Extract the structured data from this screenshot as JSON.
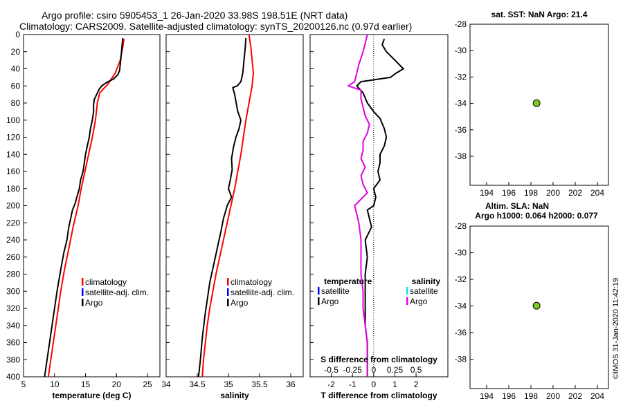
{
  "header": {
    "title_line1": "Argo profile: csiro 5905453_1 26-Jan-2020 33.98S 198.51E (NRT data)",
    "title_line2": "Climatology: CARS2009. Satellite-adjusted climatology: synTS_20200126.nc (0.97d earlier)"
  },
  "footer": {
    "stamp": "©IMOS 31-Jan-2020 11:42:19"
  },
  "colors": {
    "climatology": "#ff0000",
    "satellite": "#0000ff",
    "argo": "#000000",
    "sal_satellite": "#00e5ff",
    "sal_argo": "#e000e0",
    "dot": "#7ec820"
  },
  "chart_data": [
    {
      "id": "temperature",
      "type": "line",
      "xlabel": "temperature (deg C)",
      "xlim": [
        5,
        27
      ],
      "ylim": [
        400,
        0
      ],
      "xticks": [
        5,
        10,
        15,
        20,
        25
      ],
      "yticks": [
        0,
        20,
        40,
        60,
        80,
        100,
        120,
        140,
        160,
        180,
        200,
        220,
        240,
        260,
        280,
        300,
        320,
        340,
        360,
        380,
        400
      ],
      "legend": [
        "climatology",
        "satellite-adj. clim.",
        "Argo"
      ],
      "series": [
        {
          "name": "climatology",
          "color": "#ff0000",
          "points": [
            [
              21.2,
              5
            ],
            [
              21.0,
              15
            ],
            [
              20.6,
              30
            ],
            [
              19.8,
              45
            ],
            [
              18.6,
              58
            ],
            [
              17.3,
              68
            ],
            [
              16.9,
              80
            ],
            [
              16.6,
              100
            ],
            [
              16.1,
              120
            ],
            [
              15.5,
              140
            ],
            [
              14.9,
              160
            ],
            [
              14.3,
              180
            ],
            [
              13.8,
              200
            ],
            [
              13.0,
              225
            ],
            [
              12.3,
              250
            ],
            [
              11.6,
              275
            ],
            [
              11.0,
              300
            ],
            [
              10.4,
              330
            ],
            [
              9.8,
              360
            ],
            [
              9.3,
              385
            ],
            [
              9.0,
              400
            ]
          ]
        },
        {
          "name": "Argo",
          "color": "#000000",
          "points": [
            [
              21.0,
              4
            ],
            [
              20.9,
              12
            ],
            [
              20.8,
              20
            ],
            [
              20.7,
              28
            ],
            [
              20.6,
              35
            ],
            [
              20.5,
              42
            ],
            [
              20.2,
              47
            ],
            [
              19.5,
              52
            ],
            [
              18.4,
              56
            ],
            [
              17.6,
              60
            ],
            [
              17.2,
              64
            ],
            [
              16.8,
              70
            ],
            [
              16.4,
              76
            ],
            [
              16.3,
              82
            ],
            [
              16.3,
              90
            ],
            [
              16.1,
              100
            ],
            [
              15.8,
              110
            ],
            [
              15.6,
              120
            ],
            [
              15.3,
              130
            ],
            [
              15.0,
              140
            ],
            [
              14.8,
              150
            ],
            [
              14.6,
              160
            ],
            [
              14.2,
              170
            ],
            [
              14.0,
              180
            ],
            [
              13.6,
              190
            ],
            [
              13.3,
              198
            ],
            [
              12.9,
              205
            ],
            [
              12.6,
              215
            ],
            [
              12.3,
              225
            ],
            [
              12.0,
              240
            ],
            [
              11.5,
              255
            ],
            [
              11.0,
              275
            ],
            [
              10.4,
              300
            ],
            [
              9.8,
              330
            ],
            [
              9.2,
              360
            ],
            [
              8.6,
              390
            ],
            [
              8.4,
              400
            ]
          ]
        }
      ]
    },
    {
      "id": "salinity",
      "type": "line",
      "xlabel": "salinity",
      "xlim": [
        34,
        36.2
      ],
      "ylim": [
        400,
        0
      ],
      "xticks": [
        34,
        34.5,
        35,
        35.5,
        36
      ],
      "legend": [
        "climatology",
        "satellite-adj. clim.",
        "Argo"
      ],
      "series": [
        {
          "name": "climatology",
          "color": "#ff0000",
          "points": [
            [
              35.33,
              0
            ],
            [
              35.36,
              15
            ],
            [
              35.38,
              30
            ],
            [
              35.4,
              45
            ],
            [
              35.38,
              60
            ],
            [
              35.33,
              80
            ],
            [
              35.28,
              100
            ],
            [
              35.24,
              120
            ],
            [
              35.2,
              140
            ],
            [
              35.15,
              160
            ],
            [
              35.1,
              180
            ],
            [
              35.04,
              200
            ],
            [
              34.98,
              220
            ],
            [
              34.92,
              240
            ],
            [
              34.86,
              260
            ],
            [
              34.8,
              280
            ],
            [
              34.75,
              300
            ],
            [
              34.7,
              320
            ],
            [
              34.66,
              340
            ],
            [
              34.63,
              360
            ],
            [
              34.6,
              380
            ],
            [
              34.58,
              400
            ]
          ]
        },
        {
          "name": "Argo",
          "color": "#000000",
          "points": [
            [
              35.28,
              4
            ],
            [
              35.27,
              15
            ],
            [
              35.25,
              30
            ],
            [
              35.23,
              45
            ],
            [
              35.2,
              55
            ],
            [
              35.14,
              60
            ],
            [
              35.07,
              62
            ],
            [
              35.1,
              70
            ],
            [
              35.12,
              78
            ],
            [
              35.15,
              90
            ],
            [
              35.2,
              100
            ],
            [
              35.17,
              110
            ],
            [
              35.12,
              120
            ],
            [
              35.08,
              132
            ],
            [
              35.05,
              145
            ],
            [
              35.06,
              158
            ],
            [
              35.03,
              170
            ],
            [
              35.0,
              180
            ],
            [
              35.05,
              190
            ],
            [
              34.98,
              200
            ],
            [
              34.92,
              215
            ],
            [
              34.88,
              230
            ],
            [
              34.82,
              250
            ],
            [
              34.76,
              270
            ],
            [
              34.7,
              290
            ],
            [
              34.66,
              310
            ],
            [
              34.62,
              330
            ],
            [
              34.58,
              355
            ],
            [
              34.55,
              380
            ],
            [
              34.52,
              400
            ]
          ]
        }
      ]
    },
    {
      "id": "difference",
      "type": "line",
      "xlabel": "T difference from climatology",
      "xlabel_top": "S difference from climatology",
      "xlim": [
        -3,
        3.5
      ],
      "ylim": [
        400,
        0
      ],
      "xticks": [
        -2,
        -1,
        0,
        1,
        2
      ],
      "xticks_s": [
        "-0.5",
        "-0.25",
        "0",
        "0.25",
        "0.5"
      ],
      "xticks_s_values": [
        -2,
        -1,
        0,
        1,
        2
      ],
      "legend_temperature_title": "temperature",
      "legend_temperature": [
        "satellite",
        "Argo"
      ],
      "legend_salinity_title": "salinity",
      "legend_salinity": [
        "satellite",
        "Argo"
      ],
      "series": [
        {
          "name": "T diff Argo",
          "color": "#000000",
          "points": [
            [
              0.5,
              5
            ],
            [
              0.4,
              12
            ],
            [
              0.6,
              20
            ],
            [
              1.0,
              30
            ],
            [
              1.4,
              40
            ],
            [
              1.0,
              46
            ],
            [
              0.8,
              50
            ],
            [
              -0.6,
              55
            ],
            [
              -0.8,
              60
            ],
            [
              -0.5,
              68
            ],
            [
              -0.3,
              80
            ],
            [
              0.0,
              90
            ],
            [
              0.3,
              98
            ],
            [
              0.5,
              110
            ],
            [
              0.6,
              120
            ],
            [
              0.5,
              130
            ],
            [
              0.3,
              140
            ],
            [
              0.3,
              150
            ],
            [
              0.2,
              160
            ],
            [
              0.3,
              170
            ],
            [
              0.0,
              180
            ],
            [
              0.1,
              190
            ],
            [
              0.0,
              200
            ],
            [
              -0.3,
              205
            ],
            [
              -0.2,
              215
            ],
            [
              -0.1,
              225
            ],
            [
              -0.4,
              240
            ],
            [
              -0.3,
              260
            ],
            [
              -0.4,
              280
            ],
            [
              -0.4,
              300
            ],
            [
              -0.4,
              320
            ],
            [
              -0.4,
              340
            ],
            [
              -0.3,
              360
            ],
            [
              -0.3,
              380
            ],
            [
              -0.3,
              400
            ]
          ]
        },
        {
          "name": "S diff Argo",
          "color": "#e000e0",
          "points": [
            [
              -0.3,
              0
            ],
            [
              -0.4,
              10
            ],
            [
              -0.5,
              20
            ],
            [
              -0.7,
              35
            ],
            [
              -0.8,
              45
            ],
            [
              -0.9,
              55
            ],
            [
              -1.2,
              60
            ],
            [
              -0.6,
              65
            ],
            [
              -0.6,
              75
            ],
            [
              -0.5,
              85
            ],
            [
              -0.4,
              95
            ],
            [
              -0.2,
              105
            ],
            [
              -0.3,
              115
            ],
            [
              -0.5,
              125
            ],
            [
              -0.5,
              135
            ],
            [
              -0.6,
              145
            ],
            [
              -0.4,
              155
            ],
            [
              -0.6,
              165
            ],
            [
              -0.5,
              175
            ],
            [
              -0.3,
              185
            ],
            [
              -0.7,
              195
            ],
            [
              -0.9,
              200
            ],
            [
              -0.8,
              210
            ],
            [
              -0.7,
              220
            ],
            [
              -0.6,
              240
            ],
            [
              -0.6,
              260
            ],
            [
              -0.6,
              280
            ],
            [
              -0.5,
              300
            ],
            [
              -0.5,
              320
            ],
            [
              -0.4,
              340
            ],
            [
              -0.3,
              360
            ],
            [
              -0.3,
              380
            ],
            [
              -0.3,
              400
            ]
          ]
        }
      ]
    },
    {
      "id": "sst_map",
      "type": "scatter",
      "title": "sat. SST: NaN Argo: 21.4",
      "xlim": [
        192.5,
        205
      ],
      "ylim": [
        -40.2,
        -28
      ],
      "xticks": [
        194,
        196,
        198,
        200,
        202,
        204
      ],
      "yticks": [
        -28,
        -30,
        -32,
        -34,
        -36,
        -38
      ],
      "points": [
        [
          198.51,
          -33.98
        ]
      ]
    },
    {
      "id": "sla_map",
      "type": "scatter",
      "title_line1": "Altim. SLA: NaN",
      "title_line2": "Argo h1000: 0.064 h2000: 0.077",
      "xlim": [
        192.5,
        205
      ],
      "ylim": [
        -40.2,
        -28
      ],
      "xticks": [
        194,
        196,
        198,
        200,
        202,
        204
      ],
      "yticks": [
        -28,
        -30,
        -32,
        -34,
        -36,
        -38
      ],
      "points": [
        [
          198.51,
          -33.98
        ]
      ]
    }
  ]
}
